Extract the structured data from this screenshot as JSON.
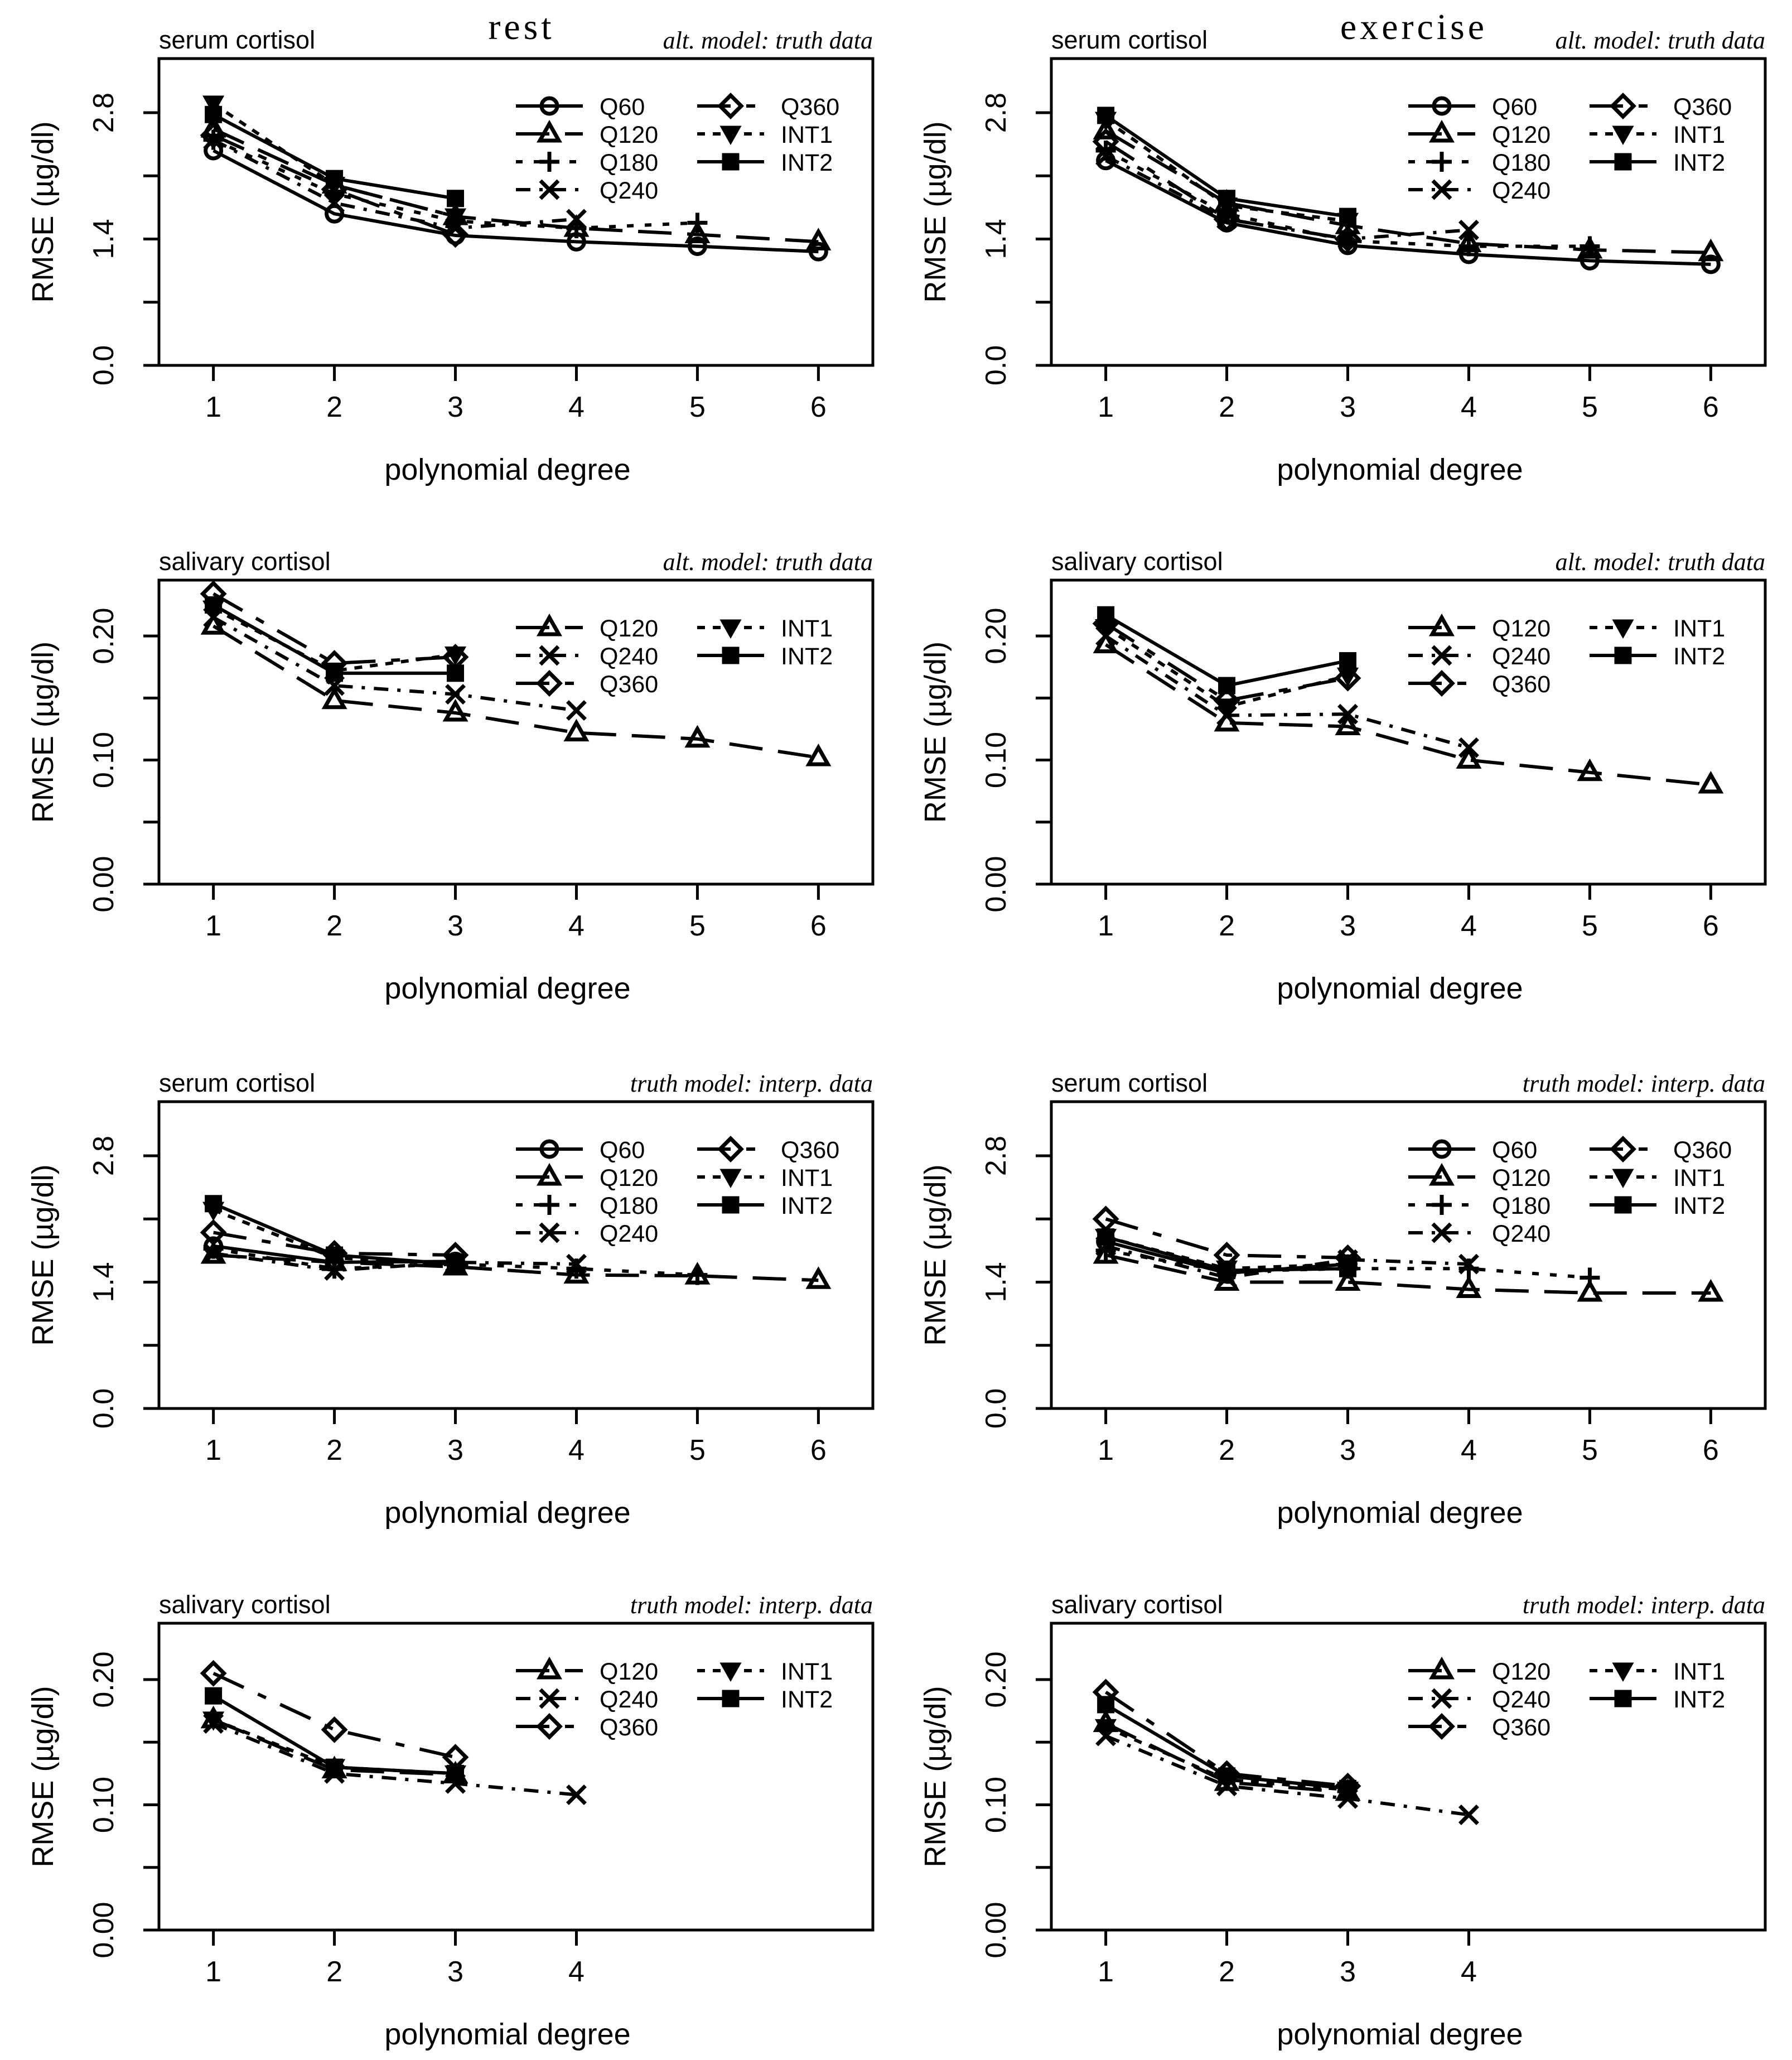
{
  "column_titles": [
    "rest",
    "exercise"
  ],
  "xlabel": "polynomial degree",
  "ylabel": "RMSE (µg/dl)",
  "styles": {
    "Q60": {
      "marker": "circle",
      "dash": ""
    },
    "Q120": {
      "marker": "triangle",
      "dash": "60,28"
    },
    "Q180": {
      "marker": "plus",
      "dash": "12,20"
    },
    "Q240": {
      "marker": "cross",
      "dash": "26,16,6,16"
    },
    "Q360": {
      "marker": "diamond",
      "dash": "60,28,16,28"
    },
    "INT1": {
      "marker": "tridown",
      "dash": "14,14"
    },
    "INT2": {
      "marker": "square",
      "dash": ""
    }
  },
  "chart_data": [
    {
      "type": "line",
      "column": "rest",
      "title": "serum cortisol",
      "subtitle": "alt. model: truth data",
      "xlabel": "polynomial degree",
      "ylabel": "RMSE (µg/dl)",
      "x": [
        1,
        2,
        3,
        4,
        5,
        6
      ],
      "xlim": [
        0.55,
        6.45
      ],
      "ylim": [
        0,
        3.4
      ],
      "yticks": [
        0.0,
        1.4,
        2.8
      ],
      "ytick_labels": [
        "0.0",
        "1.4",
        "2.8"
      ],
      "legend_cols": [
        [
          "Q60",
          "Q120",
          "Q180",
          "Q240"
        ],
        [
          "Q360",
          "INT1",
          "INT2"
        ]
      ],
      "series": [
        {
          "name": "Q60",
          "values": [
            2.38,
            1.68,
            1.44,
            1.37,
            1.32,
            1.26
          ]
        },
        {
          "name": "Q120",
          "values": [
            2.62,
            2.0,
            1.65,
            1.52,
            1.45,
            1.37
          ]
        },
        {
          "name": "Q180",
          "values": [
            2.5,
            1.9,
            1.6,
            1.52,
            1.58,
            null
          ]
        },
        {
          "name": "Q240",
          "values": [
            2.5,
            1.8,
            1.52,
            1.62,
            null,
            null
          ]
        },
        {
          "name": "Q360",
          "values": [
            2.55,
            1.95,
            1.45,
            null,
            null,
            null
          ]
        },
        {
          "name": "INT1",
          "values": [
            2.9,
            2.0,
            1.65,
            null,
            null,
            null
          ]
        },
        {
          "name": "INT2",
          "values": [
            2.78,
            2.07,
            1.85,
            null,
            null,
            null
          ]
        }
      ]
    },
    {
      "type": "line",
      "column": "exercise",
      "title": "serum cortisol",
      "subtitle": "alt. model: truth data",
      "xlabel": "polynomial degree",
      "ylabel": "RMSE (µg/dl)",
      "x": [
        1,
        2,
        3,
        4,
        5,
        6
      ],
      "xlim": [
        0.55,
        6.45
      ],
      "ylim": [
        0,
        3.4
      ],
      "yticks": [
        0.0,
        1.4,
        2.8
      ],
      "ytick_labels": [
        "0.0",
        "1.4",
        "2.8"
      ],
      "legend_cols": [
        [
          "Q60",
          "Q120",
          "Q180",
          "Q240"
        ],
        [
          "Q360",
          "INT1",
          "INT2"
        ]
      ],
      "series": [
        {
          "name": "Q60",
          "values": [
            2.27,
            1.58,
            1.33,
            1.23,
            1.16,
            1.12
          ]
        },
        {
          "name": "Q120",
          "values": [
            2.6,
            1.8,
            1.55,
            1.35,
            1.28,
            1.25
          ]
        },
        {
          "name": "Q180",
          "values": [
            2.38,
            1.68,
            1.38,
            1.32,
            1.32,
            null
          ]
        },
        {
          "name": "Q240",
          "values": [
            2.32,
            1.62,
            1.4,
            1.5,
            null,
            null
          ]
        },
        {
          "name": "Q360",
          "values": [
            2.48,
            1.62,
            1.4,
            null,
            null,
            null
          ]
        },
        {
          "name": "INT1",
          "values": [
            2.72,
            1.77,
            1.6,
            null,
            null,
            null
          ]
        },
        {
          "name": "INT2",
          "values": [
            2.77,
            1.85,
            1.65,
            null,
            null,
            null
          ]
        }
      ]
    },
    {
      "type": "line",
      "column": "rest",
      "title": "salivary cortisol",
      "subtitle": "alt. model: truth data",
      "xlabel": "polynomial degree",
      "ylabel": "RMSE (µg/dl)",
      "x": [
        1,
        2,
        3,
        4,
        5,
        6
      ],
      "xlim": [
        0.55,
        6.45
      ],
      "ylim": [
        0,
        0.245
      ],
      "yticks": [
        0.0,
        0.1,
        0.2
      ],
      "ytick_labels": [
        "0.00",
        "0.10",
        "0.20"
      ],
      "legend_cols": [
        [
          "Q120",
          "Q240",
          "Q360"
        ],
        [
          "INT1",
          "INT2"
        ]
      ],
      "series": [
        {
          "name": "Q120",
          "values": [
            0.208,
            0.148,
            0.138,
            0.122,
            0.117,
            0.102
          ]
        },
        {
          "name": "Q240",
          "values": [
            0.215,
            0.16,
            0.153,
            0.14,
            null,
            null
          ]
        },
        {
          "name": "Q360",
          "values": [
            0.234,
            0.178,
            0.183,
            null,
            null,
            null
          ]
        },
        {
          "name": "INT1",
          "values": [
            0.222,
            0.172,
            0.185,
            null,
            null,
            null
          ]
        },
        {
          "name": "INT2",
          "values": [
            0.225,
            0.17,
            0.17,
            null,
            null,
            null
          ]
        }
      ]
    },
    {
      "type": "line",
      "column": "exercise",
      "title": "salivary cortisol",
      "subtitle": "alt. model: truth data",
      "xlabel": "polynomial degree",
      "ylabel": "RMSE (µg/dl)",
      "x": [
        1,
        2,
        3,
        4,
        5,
        6
      ],
      "xlim": [
        0.55,
        6.45
      ],
      "ylim": [
        0,
        0.245
      ],
      "yticks": [
        0.0,
        0.1,
        0.2
      ],
      "ytick_labels": [
        "0.00",
        "0.10",
        "0.20"
      ],
      "legend_cols": [
        [
          "Q120",
          "Q240",
          "Q360"
        ],
        [
          "INT1",
          "INT2"
        ]
      ],
      "series": [
        {
          "name": "Q120",
          "values": [
            0.193,
            0.13,
            0.127,
            0.1,
            0.09,
            0.08
          ]
        },
        {
          "name": "Q240",
          "values": [
            0.2,
            0.136,
            0.137,
            0.11,
            null,
            null
          ]
        },
        {
          "name": "Q360",
          "values": [
            0.21,
            0.148,
            0.166,
            null,
            null,
            null
          ]
        },
        {
          "name": "INT1",
          "values": [
            0.207,
            0.143,
            0.168,
            null,
            null,
            null
          ]
        },
        {
          "name": "INT2",
          "values": [
            0.217,
            0.16,
            0.18,
            null,
            null,
            null
          ]
        }
      ]
    },
    {
      "type": "line",
      "column": "rest",
      "title": "serum cortisol",
      "subtitle": "truth model: interp. data",
      "xlabel": "polynomial degree",
      "ylabel": "RMSE (µg/dl)",
      "x": [
        1,
        2,
        3,
        4,
        5,
        6
      ],
      "xlim": [
        0.55,
        6.45
      ],
      "ylim": [
        0,
        3.4
      ],
      "yticks": [
        0.0,
        1.4,
        2.8
      ],
      "ytick_labels": [
        "0.0",
        "1.4",
        "2.8"
      ],
      "legend_cols": [
        [
          "Q60",
          "Q120",
          "Q180",
          "Q240"
        ],
        [
          "Q360",
          "INT1",
          "INT2"
        ]
      ],
      "series": [
        {
          "name": "Q60",
          "values": [
            1.8,
            1.62,
            1.63,
            null,
            null,
            null
          ]
        },
        {
          "name": "Q120",
          "values": [
            1.7,
            1.62,
            1.57,
            1.48,
            1.47,
            1.42
          ]
        },
        {
          "name": "Q180",
          "values": [
            1.77,
            1.55,
            1.6,
            1.55,
            1.48,
            null
          ]
        },
        {
          "name": "Q240",
          "values": [
            1.72,
            1.53,
            1.62,
            1.6,
            null,
            null
          ]
        },
        {
          "name": "Q360",
          "values": [
            1.95,
            1.72,
            1.7,
            null,
            null,
            null
          ]
        },
        {
          "name": "INT1",
          "values": [
            2.2,
            1.67,
            1.6,
            null,
            null,
            null
          ]
        },
        {
          "name": "INT2",
          "values": [
            2.27,
            1.7,
            1.6,
            null,
            null,
            null
          ]
        }
      ]
    },
    {
      "type": "line",
      "column": "exercise",
      "title": "serum cortisol",
      "subtitle": "truth model: interp. data",
      "xlabel": "polynomial degree",
      "ylabel": "RMSE (µg/dl)",
      "x": [
        1,
        2,
        3,
        4,
        5,
        6
      ],
      "xlim": [
        0.55,
        6.45
      ],
      "ylim": [
        0,
        3.4
      ],
      "yticks": [
        0.0,
        1.4,
        2.8
      ],
      "ytick_labels": [
        "0.0",
        "1.4",
        "2.8"
      ],
      "legend_cols": [
        [
          "Q60",
          "Q120",
          "Q180",
          "Q240"
        ],
        [
          "Q360",
          "INT1",
          "INT2"
        ]
      ],
      "series": [
        {
          "name": "Q60",
          "values": [
            1.85,
            1.5,
            1.6,
            null,
            null,
            null
          ]
        },
        {
          "name": "Q120",
          "values": [
            1.7,
            1.4,
            1.4,
            1.32,
            1.28,
            1.28
          ]
        },
        {
          "name": "Q180",
          "values": [
            1.75,
            1.52,
            1.55,
            1.55,
            1.45,
            null
          ]
        },
        {
          "name": "Q240",
          "values": [
            1.8,
            1.45,
            1.65,
            1.6,
            null,
            null
          ]
        },
        {
          "name": "Q360",
          "values": [
            2.1,
            1.7,
            1.67,
            null,
            null,
            null
          ]
        },
        {
          "name": "INT1",
          "values": [
            1.9,
            1.55,
            1.6,
            null,
            null,
            null
          ]
        },
        {
          "name": "INT2",
          "values": [
            1.9,
            1.53,
            1.55,
            null,
            null,
            null
          ]
        }
      ]
    },
    {
      "type": "line",
      "column": "rest",
      "title": "salivary cortisol",
      "subtitle": "truth model: interp. data",
      "xlabel": "polynomial degree",
      "ylabel": "RMSE (µg/dl)",
      "x": [
        1,
        2,
        3,
        4
      ],
      "xlim": [
        0.55,
        6.45
      ],
      "ylim": [
        0,
        0.245
      ],
      "yticks": [
        0.0,
        0.1,
        0.2
      ],
      "ytick_labels": [
        "0.00",
        "0.10",
        "0.20"
      ],
      "legend_cols": [
        [
          "Q120",
          "Q240",
          "Q360"
        ],
        [
          "INT1",
          "INT2"
        ]
      ],
      "series": [
        {
          "name": "Q120",
          "values": [
            0.168,
            0.128,
            0.124,
            null
          ]
        },
        {
          "name": "Q240",
          "values": [
            0.165,
            0.125,
            0.117,
            0.108
          ]
        },
        {
          "name": "Q360",
          "values": [
            0.205,
            0.16,
            0.138,
            null
          ]
        },
        {
          "name": "INT1",
          "values": [
            0.168,
            0.13,
            0.125,
            null
          ]
        },
        {
          "name": "INT2",
          "values": [
            0.187,
            0.13,
            0.125,
            null
          ]
        }
      ]
    },
    {
      "type": "line",
      "column": "exercise",
      "title": "salivary cortisol",
      "subtitle": "truth model: interp. data",
      "xlabel": "polynomial degree",
      "ylabel": "RMSE (µg/dl)",
      "x": [
        1,
        2,
        3,
        4
      ],
      "xlim": [
        0.55,
        6.45
      ],
      "ylim": [
        0,
        0.245
      ],
      "yticks": [
        0.0,
        0.1,
        0.2
      ],
      "ytick_labels": [
        "0.00",
        "0.10",
        "0.20"
      ],
      "legend_cols": [
        [
          "Q120",
          "Q240",
          "Q360"
        ],
        [
          "INT1",
          "INT2"
        ]
      ],
      "series": [
        {
          "name": "Q120",
          "values": [
            0.165,
            0.118,
            0.11,
            null
          ]
        },
        {
          "name": "Q240",
          "values": [
            0.155,
            0.115,
            0.105,
            0.092
          ]
        },
        {
          "name": "Q360",
          "values": [
            0.19,
            0.125,
            0.115,
            null
          ]
        },
        {
          "name": "INT1",
          "values": [
            0.162,
            0.12,
            0.112,
            null
          ]
        },
        {
          "name": "INT2",
          "values": [
            0.18,
            0.123,
            0.113,
            null
          ]
        }
      ]
    }
  ]
}
